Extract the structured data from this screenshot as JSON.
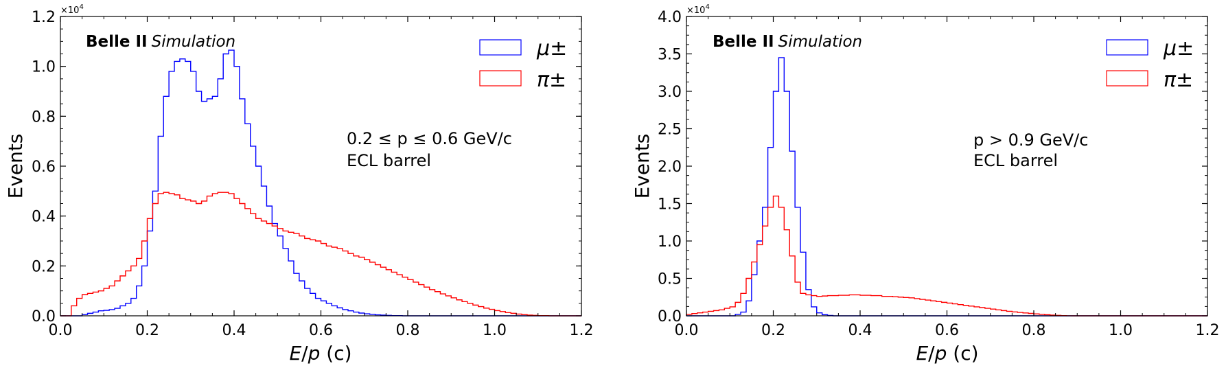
{
  "chart_data": [
    {
      "type": "histogram",
      "id": "left",
      "xlabel": "E/p (c)",
      "ylabel": "Events",
      "xlim": [
        0.0,
        1.2
      ],
      "ylim": [
        0.0,
        1.2
      ],
      "y_multiplier": "×10^4",
      "xticks": [
        0.0,
        0.2,
        0.4,
        0.6,
        0.8,
        1.0,
        1.2
      ],
      "yticks": [
        0.0,
        0.2,
        0.4,
        0.6,
        0.8,
        1.0,
        1.2
      ],
      "x_tick_labels": [
        "0.0",
        "0.2",
        "0.4",
        "0.6",
        "0.8",
        "1.0",
        "1.2"
      ],
      "y_tick_labels": [
        "0.0",
        "0.2",
        "0.4",
        "0.6",
        "0.8",
        "1.0",
        "1.2"
      ],
      "experiment_bold": "Belle II",
      "experiment_italic": "Simulation",
      "annotation_line1": "0.2  ≤ p ≤  0.6 GeV/c",
      "annotation_line2": "ECL barrel",
      "legend_position": "top-right",
      "series": [
        {
          "name": "μ±",
          "color": "#0000ff",
          "bin_width": 0.0125,
          "x_start": 0.0,
          "values": [
            0,
            0,
            0,
            0,
            0.005,
            0.01,
            0.015,
            0.02,
            0.022,
            0.025,
            0.03,
            0.04,
            0.05,
            0.07,
            0.12,
            0.2,
            0.34,
            0.5,
            0.72,
            0.88,
            0.98,
            1.02,
            1.03,
            1.02,
            0.98,
            0.9,
            0.86,
            0.87,
            0.88,
            0.95,
            1.05,
            1.065,
            1.0,
            0.87,
            0.77,
            0.68,
            0.6,
            0.52,
            0.44,
            0.37,
            0.32,
            0.27,
            0.22,
            0.17,
            0.14,
            0.11,
            0.09,
            0.07,
            0.06,
            0.05,
            0.04,
            0.032,
            0.025,
            0.02,
            0.015,
            0.011,
            0.008,
            0.006,
            0.004,
            0.003,
            0.002,
            0.001,
            0.001,
            0,
            0,
            0,
            0,
            0,
            0,
            0,
            0,
            0,
            0,
            0,
            0,
            0,
            0,
            0,
            0,
            0,
            0,
            0,
            0,
            0,
            0,
            0,
            0,
            0,
            0,
            0,
            0,
            0,
            0,
            0,
            0,
            0
          ]
        },
        {
          "name": "π±",
          "color": "#ff0000",
          "bin_width": 0.0125,
          "x_start": 0.0,
          "values": [
            0,
            0,
            0.04,
            0.07,
            0.085,
            0.09,
            0.095,
            0.1,
            0.11,
            0.12,
            0.14,
            0.16,
            0.18,
            0.2,
            0.23,
            0.3,
            0.39,
            0.45,
            0.49,
            0.495,
            0.49,
            0.485,
            0.47,
            0.465,
            0.46,
            0.45,
            0.46,
            0.48,
            0.49,
            0.495,
            0.495,
            0.49,
            0.47,
            0.45,
            0.43,
            0.41,
            0.39,
            0.38,
            0.37,
            0.36,
            0.35,
            0.34,
            0.335,
            0.33,
            0.32,
            0.31,
            0.305,
            0.3,
            0.29,
            0.28,
            0.275,
            0.27,
            0.26,
            0.25,
            0.24,
            0.235,
            0.225,
            0.215,
            0.205,
            0.195,
            0.185,
            0.175,
            0.165,
            0.155,
            0.145,
            0.135,
            0.125,
            0.115,
            0.105,
            0.097,
            0.088,
            0.08,
            0.072,
            0.064,
            0.057,
            0.05,
            0.043,
            0.037,
            0.031,
            0.026,
            0.021,
            0.017,
            0.013,
            0.01,
            0.007,
            0.005,
            0.003,
            0.002,
            0.001,
            0.001,
            0,
            0,
            0,
            0,
            0,
            0
          ]
        }
      ]
    },
    {
      "type": "histogram",
      "id": "right",
      "xlabel": "E/p (c)",
      "ylabel": "Events",
      "xlim": [
        0.0,
        1.2
      ],
      "ylim": [
        0.0,
        4.0
      ],
      "y_multiplier": "×10^4",
      "xticks": [
        0.0,
        0.2,
        0.4,
        0.6,
        0.8,
        1.0,
        1.2
      ],
      "yticks": [
        0.0,
        0.5,
        1.0,
        1.5,
        2.0,
        2.5,
        3.0,
        3.5,
        4.0
      ],
      "x_tick_labels": [
        "0.0",
        "0.2",
        "0.4",
        "0.6",
        "0.8",
        "1.0",
        "1.2"
      ],
      "y_tick_labels": [
        "0.0",
        "0.5",
        "1.0",
        "1.5",
        "2.0",
        "2.5",
        "3.0",
        "3.5",
        "4.0"
      ],
      "experiment_bold": "Belle II",
      "experiment_italic": "Simulation",
      "annotation_line1": "p > 0.9 GeV/c",
      "annotation_line2": "ECL barrel",
      "legend_position": "top-right",
      "series": [
        {
          "name": "μ±",
          "color": "#0000ff",
          "bin_width": 0.0125,
          "x_start": 0.0,
          "values": [
            0,
            0,
            0,
            0,
            0,
            0,
            0,
            0,
            0,
            0.02,
            0.05,
            0.2,
            0.55,
            1.0,
            1.45,
            2.25,
            3.0,
            3.45,
            3.0,
            2.2,
            1.45,
            0.85,
            0.35,
            0.12,
            0.04,
            0.015,
            0.005,
            0,
            0,
            0,
            0,
            0,
            0,
            0,
            0,
            0,
            0,
            0,
            0,
            0,
            0,
            0,
            0,
            0,
            0,
            0,
            0,
            0,
            0,
            0,
            0,
            0,
            0,
            0,
            0,
            0,
            0,
            0,
            0,
            0,
            0,
            0,
            0,
            0,
            0,
            0,
            0,
            0,
            0,
            0,
            0,
            0,
            0,
            0,
            0,
            0,
            0,
            0,
            0,
            0,
            0,
            0,
            0,
            0,
            0,
            0,
            0,
            0,
            0,
            0,
            0,
            0,
            0,
            0,
            0,
            0
          ]
        },
        {
          "name": "π±",
          "color": "#ff0000",
          "bin_width": 0.0125,
          "x_start": 0.0,
          "values": [
            0.02,
            0.03,
            0.04,
            0.05,
            0.06,
            0.07,
            0.08,
            0.1,
            0.12,
            0.18,
            0.3,
            0.5,
            0.72,
            0.95,
            1.2,
            1.45,
            1.6,
            1.45,
            1.15,
            0.8,
            0.45,
            0.3,
            0.28,
            0.27,
            0.26,
            0.265,
            0.27,
            0.27,
            0.275,
            0.275,
            0.28,
            0.28,
            0.275,
            0.275,
            0.27,
            0.27,
            0.26,
            0.26,
            0.255,
            0.25,
            0.245,
            0.24,
            0.23,
            0.22,
            0.21,
            0.2,
            0.19,
            0.18,
            0.17,
            0.16,
            0.15,
            0.14,
            0.13,
            0.12,
            0.11,
            0.1,
            0.09,
            0.08,
            0.07,
            0.06,
            0.052,
            0.045,
            0.038,
            0.032,
            0.026,
            0.02,
            0.015,
            0.01,
            0.006,
            0.003,
            0.001,
            0,
            0,
            0,
            0,
            0,
            0,
            0,
            0,
            0,
            0,
            0,
            0,
            0,
            0,
            0,
            0,
            0,
            0,
            0,
            0,
            0,
            0,
            0,
            0,
            0
          ]
        }
      ]
    }
  ]
}
